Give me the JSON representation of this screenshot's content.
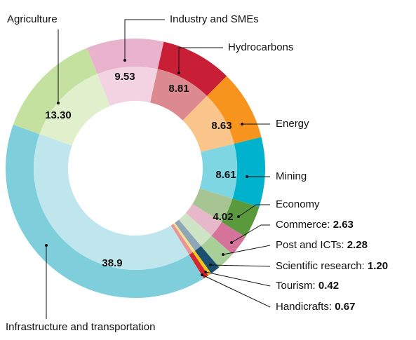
{
  "chart_data": {
    "type": "donut",
    "categories": [
      "Industry and SMEs",
      "Hydrocarbons",
      "Energy",
      "Mining",
      "Economy",
      "Commerce:",
      "Post and ICTs:",
      "Scientific research:",
      "Tourism:",
      "Handicrafts:",
      "Infrastructure and transportation",
      "Agriculture"
    ],
    "values": [
      9.53,
      8.81,
      8.63,
      8.61,
      4.02,
      2.63,
      2.28,
      1.2,
      0.42,
      0.67,
      38.9,
      13.3
    ],
    "value_labels": [
      "9.53",
      "8.81",
      "8.63",
      "8.61",
      "4.02",
      "2.63",
      "2.28",
      "1.20",
      "0.42",
      "0.67",
      "38.9",
      "13.30"
    ],
    "colors": [
      "#eab3cd",
      "#c81e36",
      "#f7941d",
      "#00b2cc",
      "#5a9a3c",
      "#d6739b",
      "#a8cf98",
      "#1b4f70",
      "#f5c419",
      "#d22630",
      "#7fcedc",
      "#c5e19f"
    ],
    "inner_colors": [
      "#f3d3e2",
      "#dc8a8f",
      "#f9c58a",
      "#7fd6e3",
      "#a6c593",
      "#e7b7ca",
      "#cfe4c7",
      "#8ea7b6",
      "#f8e08a",
      "#e8959a",
      "#bfe6ec",
      "#e0efcc"
    ]
  }
}
